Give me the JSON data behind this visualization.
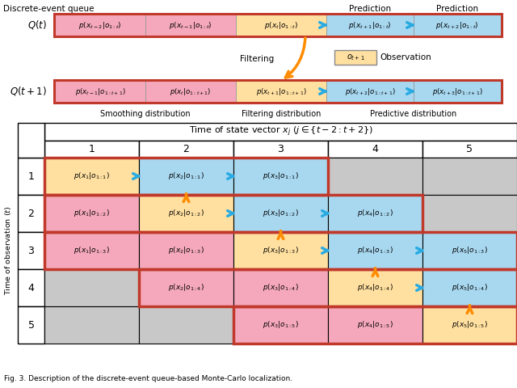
{
  "colors": {
    "pink": "#F5A8BB",
    "yellow": "#FFE0A0",
    "blue": "#A8D8F0",
    "gray": "#C8C8C8",
    "white": "#FFFFFF",
    "orange": "#FF8C00",
    "cyan_arrow": "#29ABE2",
    "red_border": "#C0392B",
    "black": "#000000"
  },
  "qt_cells": [
    {
      "text": "$p(x_{t-2}|o_{1:t})$",
      "color": "pink"
    },
    {
      "text": "$p(x_{t-1}|o_{1:t})$",
      "color": "pink"
    },
    {
      "text": "$p(x_t|o_{1:t})$",
      "color": "yellow"
    },
    {
      "text": "$p(x_{t+1}|o_{1:t})$",
      "color": "blue"
    },
    {
      "text": "$p(x_{t+2}|o_{1:t})$",
      "color": "blue"
    }
  ],
  "qt1_cells": [
    {
      "text": "$p(x_{t-1}|o_{1:t+1})$",
      "color": "pink"
    },
    {
      "text": "$p(x_t|o_{1:t+1})$",
      "color": "pink"
    },
    {
      "text": "$p(x_{t+1}|o_{1:t+1})$",
      "color": "yellow"
    },
    {
      "text": "$p(x_{t+2}|o_{1:t+1})$",
      "color": "blue"
    },
    {
      "text": "$p(x_{t+3}|o_{1:t+1})$",
      "color": "blue"
    }
  ],
  "table_cells": [
    [
      {
        "text": "$p(x_1|o_{1:1})$",
        "color": "yellow"
      },
      {
        "text": "$p(x_2|o_{1:1})$",
        "color": "blue"
      },
      {
        "text": "$p(x_3|o_{1:1})$",
        "color": "blue"
      },
      {
        "text": "",
        "color": "gray"
      },
      {
        "text": "",
        "color": "gray"
      }
    ],
    [
      {
        "text": "$p(x_1|o_{1:2})$",
        "color": "pink"
      },
      {
        "text": "$p(x_2|o_{1:2})$",
        "color": "yellow"
      },
      {
        "text": "$p(x_3|o_{1:2})$",
        "color": "blue"
      },
      {
        "text": "$p(x_4|o_{1:2})$",
        "color": "blue"
      },
      {
        "text": "",
        "color": "gray"
      }
    ],
    [
      {
        "text": "$p(x_1|o_{1:3})$",
        "color": "pink"
      },
      {
        "text": "$p(x_2|o_{1:3})$",
        "color": "pink"
      },
      {
        "text": "$p(x_3|o_{1:3})$",
        "color": "yellow"
      },
      {
        "text": "$p(x_4|o_{1:3})$",
        "color": "blue"
      },
      {
        "text": "$p(x_5|o_{1:3})$",
        "color": "blue"
      }
    ],
    [
      {
        "text": "",
        "color": "gray"
      },
      {
        "text": "$p(x_2|o_{1:4})$",
        "color": "pink"
      },
      {
        "text": "$p(x_3|o_{1:4})$",
        "color": "pink"
      },
      {
        "text": "$p(x_4|o_{1:4})$",
        "color": "yellow"
      },
      {
        "text": "$p(x_5|o_{1:4})$",
        "color": "blue"
      }
    ],
    [
      {
        "text": "",
        "color": "gray"
      },
      {
        "text": "",
        "color": "gray"
      },
      {
        "text": "$p(x_3|o_{1:5})$",
        "color": "pink"
      },
      {
        "text": "$p(x_4|o_{1:5})$",
        "color": "pink"
      },
      {
        "text": "$p(x_5|o_{1:5})$",
        "color": "yellow"
      }
    ]
  ],
  "blue_arrows_table": [
    [
      0,
      0,
      1
    ],
    [
      0,
      1,
      2
    ],
    [
      1,
      1,
      2
    ],
    [
      1,
      2,
      3
    ],
    [
      2,
      2,
      3
    ],
    [
      2,
      3,
      4
    ],
    [
      3,
      3,
      4
    ]
  ],
  "orange_arrows_table": [
    [
      0,
      1
    ],
    [
      1,
      2
    ],
    [
      2,
      3
    ],
    [
      3,
      4
    ]
  ],
  "red_borders_table": [
    [
      0,
      0,
      3
    ],
    [
      1,
      0,
      4
    ],
    [
      2,
      0,
      5
    ],
    [
      3,
      1,
      5
    ],
    [
      4,
      2,
      5
    ]
  ]
}
